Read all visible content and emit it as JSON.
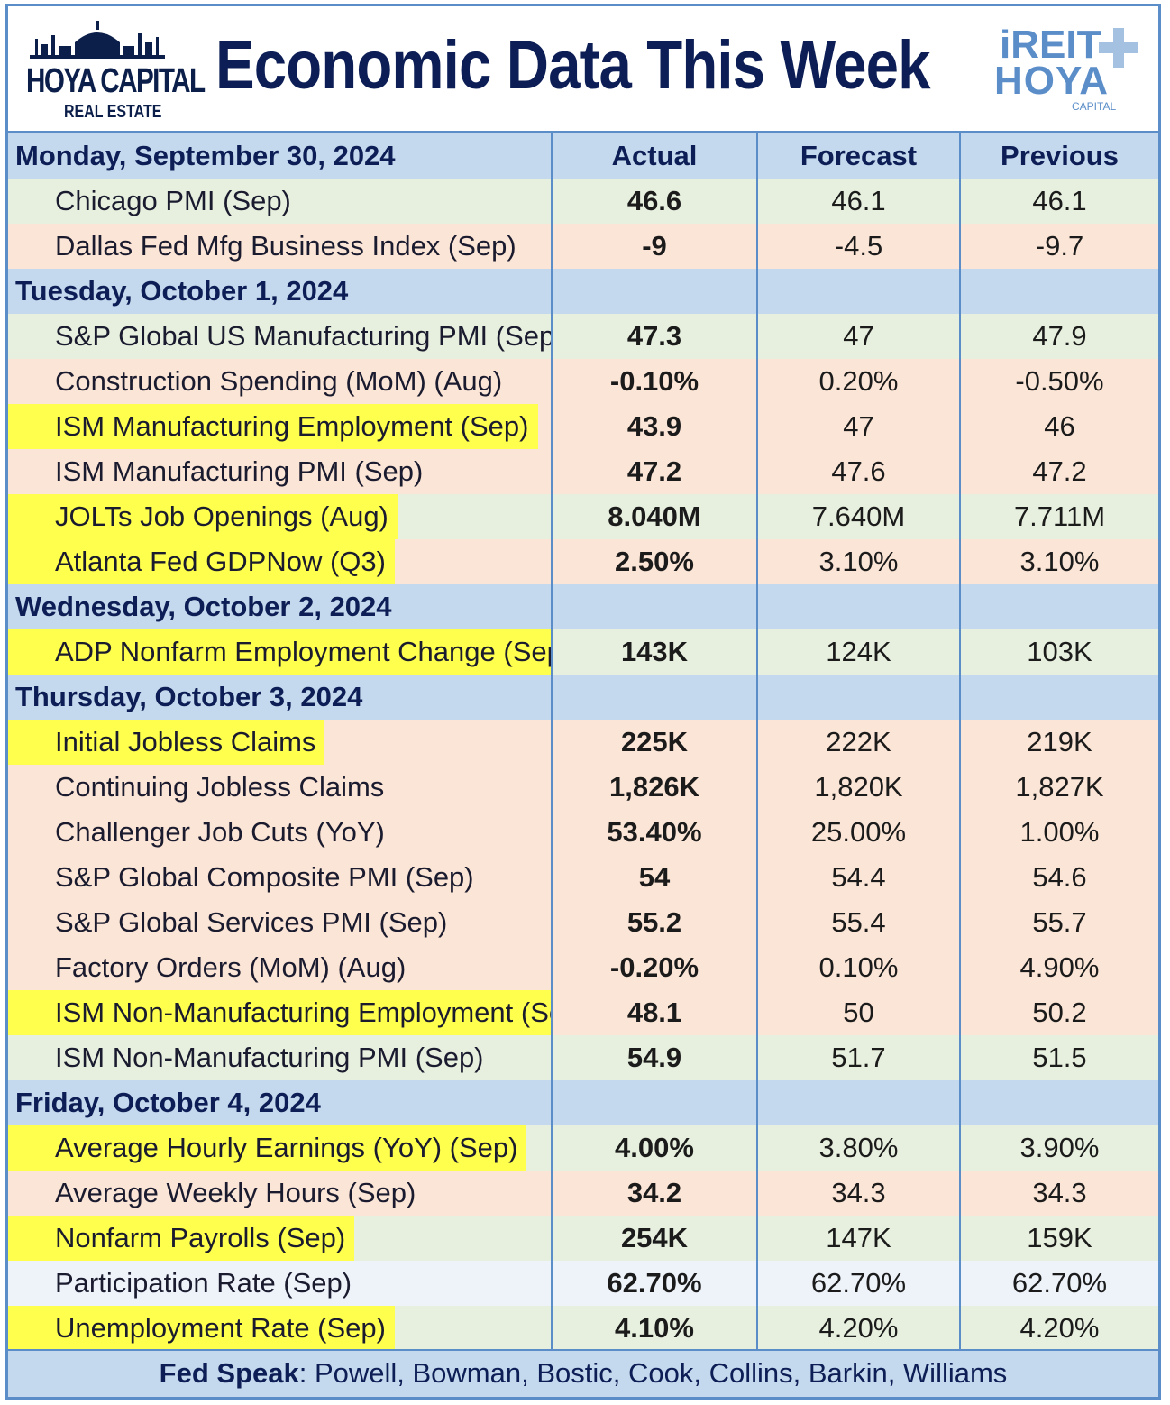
{
  "header": {
    "title": "Economic Data This Week",
    "left_logo": {
      "brand": "HOYA CAPITAL",
      "sub": "REAL ESTATE"
    },
    "right_logo": {
      "line1": "iREIT",
      "line2": "HOYA",
      "line3": "CAPITAL"
    }
  },
  "columns": {
    "actual": "Actual",
    "forecast": "Forecast",
    "previous": "Previous"
  },
  "days": [
    {
      "date": "Monday, September 30, 2024",
      "rows": [
        {
          "name": "Chicago PMI (Sep)",
          "actual": "46.6",
          "forecast": "46.1",
          "previous": "46.1",
          "tone": "green",
          "actual_color": "green",
          "previous_color": "black",
          "highlight": false
        },
        {
          "name": "Dallas Fed Mfg Business Index (Sep)",
          "actual": "-9",
          "forecast": "-4.5",
          "previous": "-9.7",
          "tone": "red",
          "actual_color": "red",
          "previous_color": "black",
          "highlight": false
        }
      ]
    },
    {
      "date": "Tuesday, October 1, 2024",
      "rows": [
        {
          "name": "S&P Global US Manufacturing PMI (Sep)",
          "actual": "47.3",
          "forecast": "47",
          "previous": "47.9",
          "tone": "green",
          "actual_color": "green",
          "previous_color": "black",
          "highlight": false
        },
        {
          "name": "Construction Spending (MoM) (Aug)",
          "actual": "-0.10%",
          "forecast": "0.20%",
          "previous": "-0.50%",
          "tone": "red",
          "actual_color": "red",
          "previous_color": "red",
          "highlight": false
        },
        {
          "name": "ISM Manufacturing Employment (Sep)",
          "actual": "43.9",
          "forecast": "47",
          "previous": "46",
          "tone": "red",
          "actual_color": "red",
          "previous_color": "black",
          "highlight": true
        },
        {
          "name": "ISM Manufacturing PMI (Sep)",
          "actual": "47.2",
          "forecast": "47.6",
          "previous": "47.2",
          "tone": "red",
          "actual_color": "red",
          "previous_color": "black",
          "highlight": false
        },
        {
          "name": "JOLTs Job Openings (Aug)",
          "actual": "8.040M",
          "forecast": "7.640M",
          "previous": "7.711M",
          "tone": "green",
          "actual_color": "green",
          "previous_color": "green",
          "highlight": true
        },
        {
          "name": "Atlanta Fed GDPNow (Q3)",
          "actual": "2.50%",
          "forecast": "3.10%",
          "previous": "3.10%",
          "tone": "red",
          "actual_color": "red",
          "previous_color": "green",
          "highlight": true
        }
      ]
    },
    {
      "date": "Wednesday, October 2, 2024",
      "rows": [
        {
          "name": "ADP Nonfarm Employment Change (Sep)",
          "actual": "143K",
          "forecast": "124K",
          "previous": "103K",
          "tone": "green",
          "actual_color": "green",
          "previous_color": "green",
          "highlight": true
        }
      ]
    },
    {
      "date": "Thursday, October 3, 2024",
      "rows": [
        {
          "name": "Initial Jobless Claims",
          "actual": "225K",
          "forecast": "222K",
          "previous": "219K",
          "tone": "red",
          "actual_color": "red",
          "previous_color": "red",
          "highlight": true
        },
        {
          "name": "Continuing Jobless Claims",
          "actual": "1,826K",
          "forecast": "1,820K",
          "previous": "1,827K",
          "tone": "red",
          "actual_color": "red",
          "previous_color": "green",
          "highlight": false
        },
        {
          "name": "Challenger Job Cuts (YoY)",
          "actual": "53.40%",
          "forecast": "25.00%",
          "previous": "1.00%",
          "tone": "red",
          "actual_color": "red",
          "previous_color": "black",
          "highlight": false
        },
        {
          "name": "S&P Global Composite PMI (Sep)",
          "actual": "54",
          "forecast": "54.4",
          "previous": "54.6",
          "tone": "red",
          "actual_color": "red",
          "previous_color": "black",
          "highlight": false
        },
        {
          "name": "S&P Global Services PMI (Sep)",
          "actual": "55.2",
          "forecast": "55.4",
          "previous": "55.7",
          "tone": "red",
          "actual_color": "red",
          "previous_color": "black",
          "highlight": false
        },
        {
          "name": "Factory Orders (MoM) (Aug)",
          "actual": "-0.20%",
          "forecast": "0.10%",
          "previous": "4.90%",
          "tone": "red",
          "actual_color": "red",
          "previous_color": "red",
          "highlight": false
        },
        {
          "name": "ISM Non-Manufacturing Employment (Sep)",
          "actual": "48.1",
          "forecast": "50",
          "previous": "50.2",
          "tone": "red",
          "actual_color": "red",
          "previous_color": "black",
          "highlight": true
        },
        {
          "name": "ISM Non-Manufacturing PMI (Sep)",
          "actual": "54.9",
          "forecast": "51.7",
          "previous": "51.5",
          "tone": "green",
          "actual_color": "green",
          "previous_color": "black",
          "highlight": false
        }
      ]
    },
    {
      "date": "Friday, October 4, 2024",
      "rows": [
        {
          "name": "Average Hourly Earnings (YoY) (Sep)",
          "actual": "4.00%",
          "forecast": "3.80%",
          "previous": "3.90%",
          "tone": "green",
          "actual_color": "green",
          "previous_color": "green",
          "highlight": true
        },
        {
          "name": "Average Weekly Hours (Sep)",
          "actual": "34.2",
          "forecast": "34.3",
          "previous": "34.3",
          "tone": "red",
          "actual_color": "red",
          "previous_color": "black",
          "highlight": false
        },
        {
          "name": "Nonfarm Payrolls (Sep)",
          "actual": "254K",
          "forecast": "147K",
          "previous": "159K",
          "tone": "green",
          "actual_color": "green",
          "previous_color": "green",
          "highlight": true
        },
        {
          "name": "Participation Rate (Sep)",
          "actual": "62.70%",
          "forecast": "62.70%",
          "previous": "62.70%",
          "tone": "neutral",
          "actual_color": "dark",
          "previous_color": "black",
          "highlight": false
        },
        {
          "name": "Unemployment Rate (Sep)",
          "actual": "4.10%",
          "forecast": "4.20%",
          "previous": "4.20%",
          "tone": "green",
          "actual_color": "green",
          "previous_color": "black",
          "highlight": true
        }
      ]
    }
  ],
  "footer": {
    "label": "Fed Speak",
    "text": ": Powell, Bowman, Bostic, Cook, Collins, Barkin, Williams"
  },
  "colors": {
    "green": "#3ea336",
    "red": "#e8262a",
    "navy": "#0c1e55",
    "border": "#5b8ec9",
    "day_bg": "#c5d9ee",
    "highlight": "#ffff4d"
  }
}
